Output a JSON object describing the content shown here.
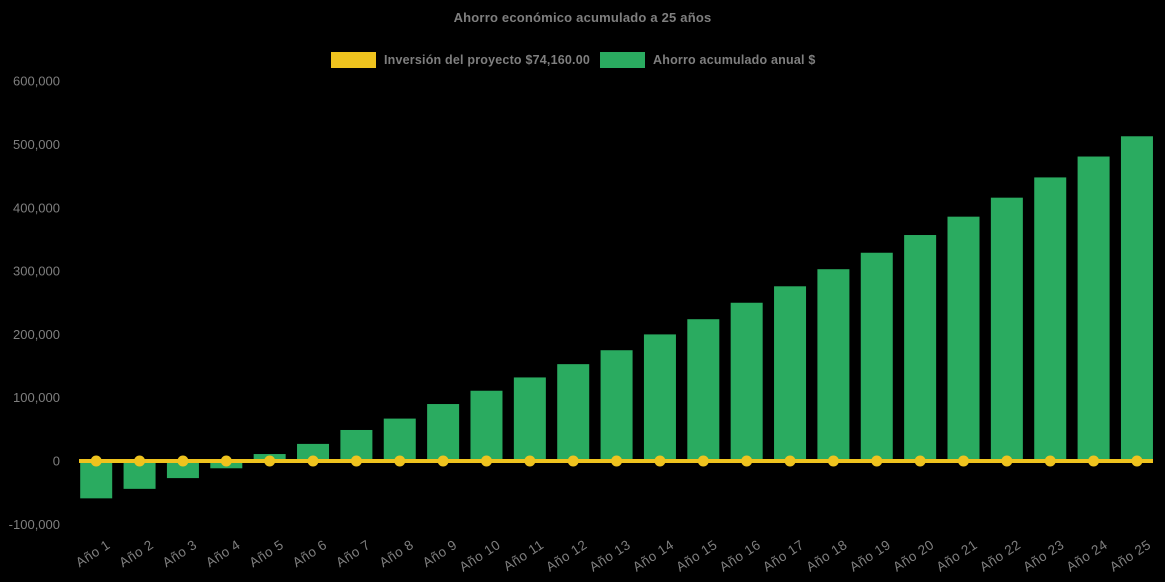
{
  "chart_data": {
    "type": "bar",
    "title": "Ahorro económico acumulado a 25 años",
    "xlabel": "",
    "ylabel": "",
    "background_color": "#000000",
    "text_color": "#7f7f7f",
    "grid": false,
    "legend_position": "top",
    "ylim": [
      -100000,
      600000
    ],
    "ytick_values": [
      600000,
      500000,
      400000,
      300000,
      200000,
      100000,
      0,
      -100000
    ],
    "ytick_labels": [
      "600,000",
      "500,000",
      "400,000",
      "300,000",
      "200,000",
      "100,000",
      "0",
      "-100,000"
    ],
    "categories": [
      "Año 1",
      "Año 2",
      "Año 3",
      "Año 4",
      "Año 5",
      "Año 6",
      "Año 7",
      "Año 8",
      "Año 9",
      "Año 10",
      "Año 11",
      "Año 12",
      "Año 13",
      "Año 14",
      "Año 15",
      "Año 16",
      "Año 17",
      "Año 18",
      "Año 19",
      "Año 20",
      "Año 21",
      "Año 22",
      "Año 23",
      "Año 24",
      "Año 25"
    ],
    "series": [
      {
        "name": "Inversión del proyecto $74,160.00",
        "type": "line",
        "color": "#efc31e",
        "values": [
          0,
          0,
          0,
          0,
          0,
          0,
          0,
          0,
          0,
          0,
          0,
          0,
          0,
          0,
          0,
          0,
          0,
          0,
          0,
          0,
          0,
          0,
          0,
          0,
          0
        ]
      },
      {
        "name": "Ahorro acumulado anual $",
        "type": "bar",
        "color": "#2aab60",
        "values": [
          -59000,
          -44000,
          -27000,
          -11500,
          11000,
          27000,
          49000,
          67000,
          90000,
          111000,
          132000,
          153000,
          175000,
          200000,
          224000,
          250000,
          276000,
          303000,
          329000,
          357000,
          386000,
          416000,
          448000,
          481000,
          513000
        ]
      }
    ]
  }
}
